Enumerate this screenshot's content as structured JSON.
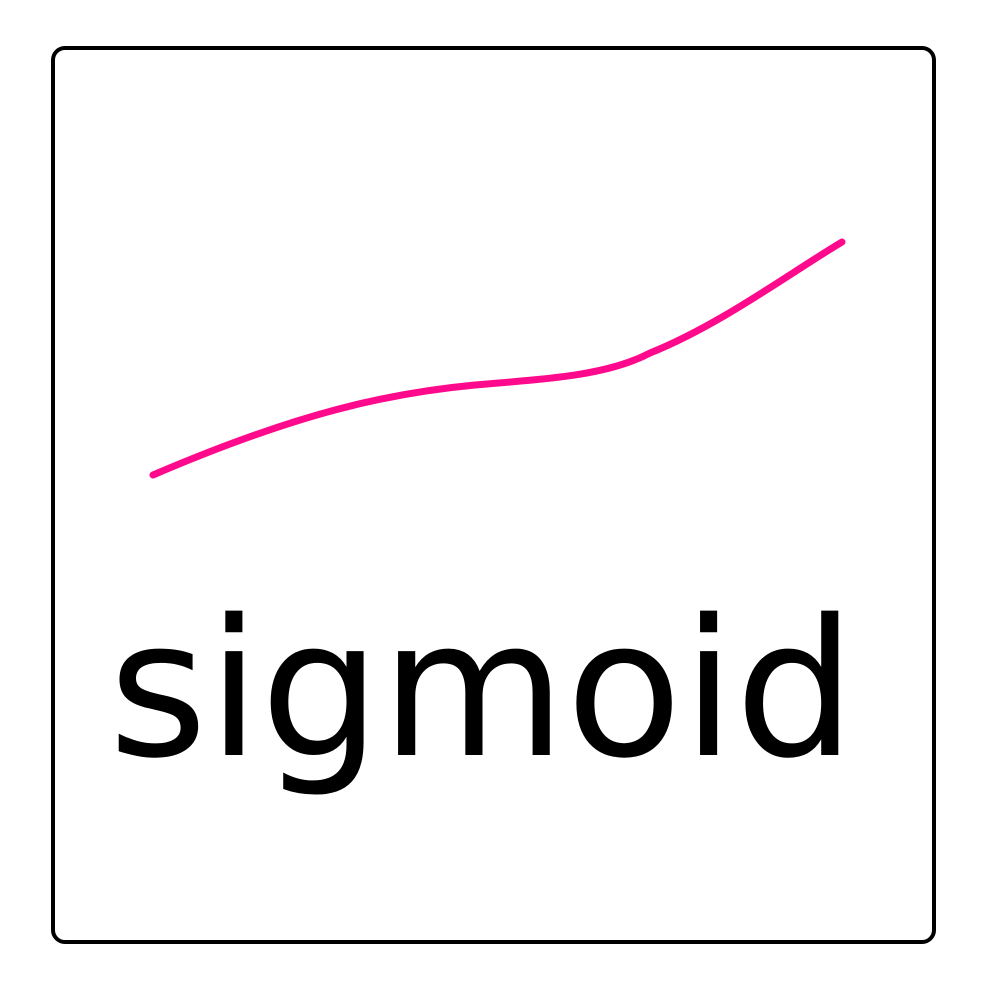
{
  "card": {
    "label": "sigmoid",
    "icon": "sigmoid-curve-icon",
    "curve_color": "#ff0a8c",
    "border_color": "#000000",
    "text_color": "#000000"
  }
}
